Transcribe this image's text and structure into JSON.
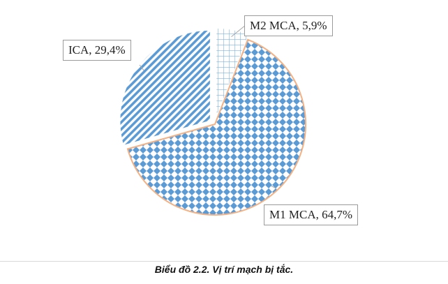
{
  "caption": "Biểu đồ 2.2. Vị trí mạch bị tắc.",
  "chart_data": {
    "type": "pie",
    "slices": [
      {
        "name": "M2 MCA",
        "value": 5.9,
        "label": "M2 MCA, 5,9%",
        "pattern": "grid",
        "color": "#7fb3e0",
        "exploded": true
      },
      {
        "name": "M1 MCA",
        "value": 64.7,
        "label": "M1 MCA, 64,7%",
        "pattern": "diamond",
        "color": "#5b9bd5",
        "exploded": false
      },
      {
        "name": "ICA",
        "value": 29.4,
        "label": "ICA, 29,4%",
        "pattern": "diagonal",
        "color": "#5b9bd5",
        "exploded": true
      }
    ],
    "start_angle_deg": 0,
    "direction": "clockwise",
    "border_color": "#f4b183"
  }
}
